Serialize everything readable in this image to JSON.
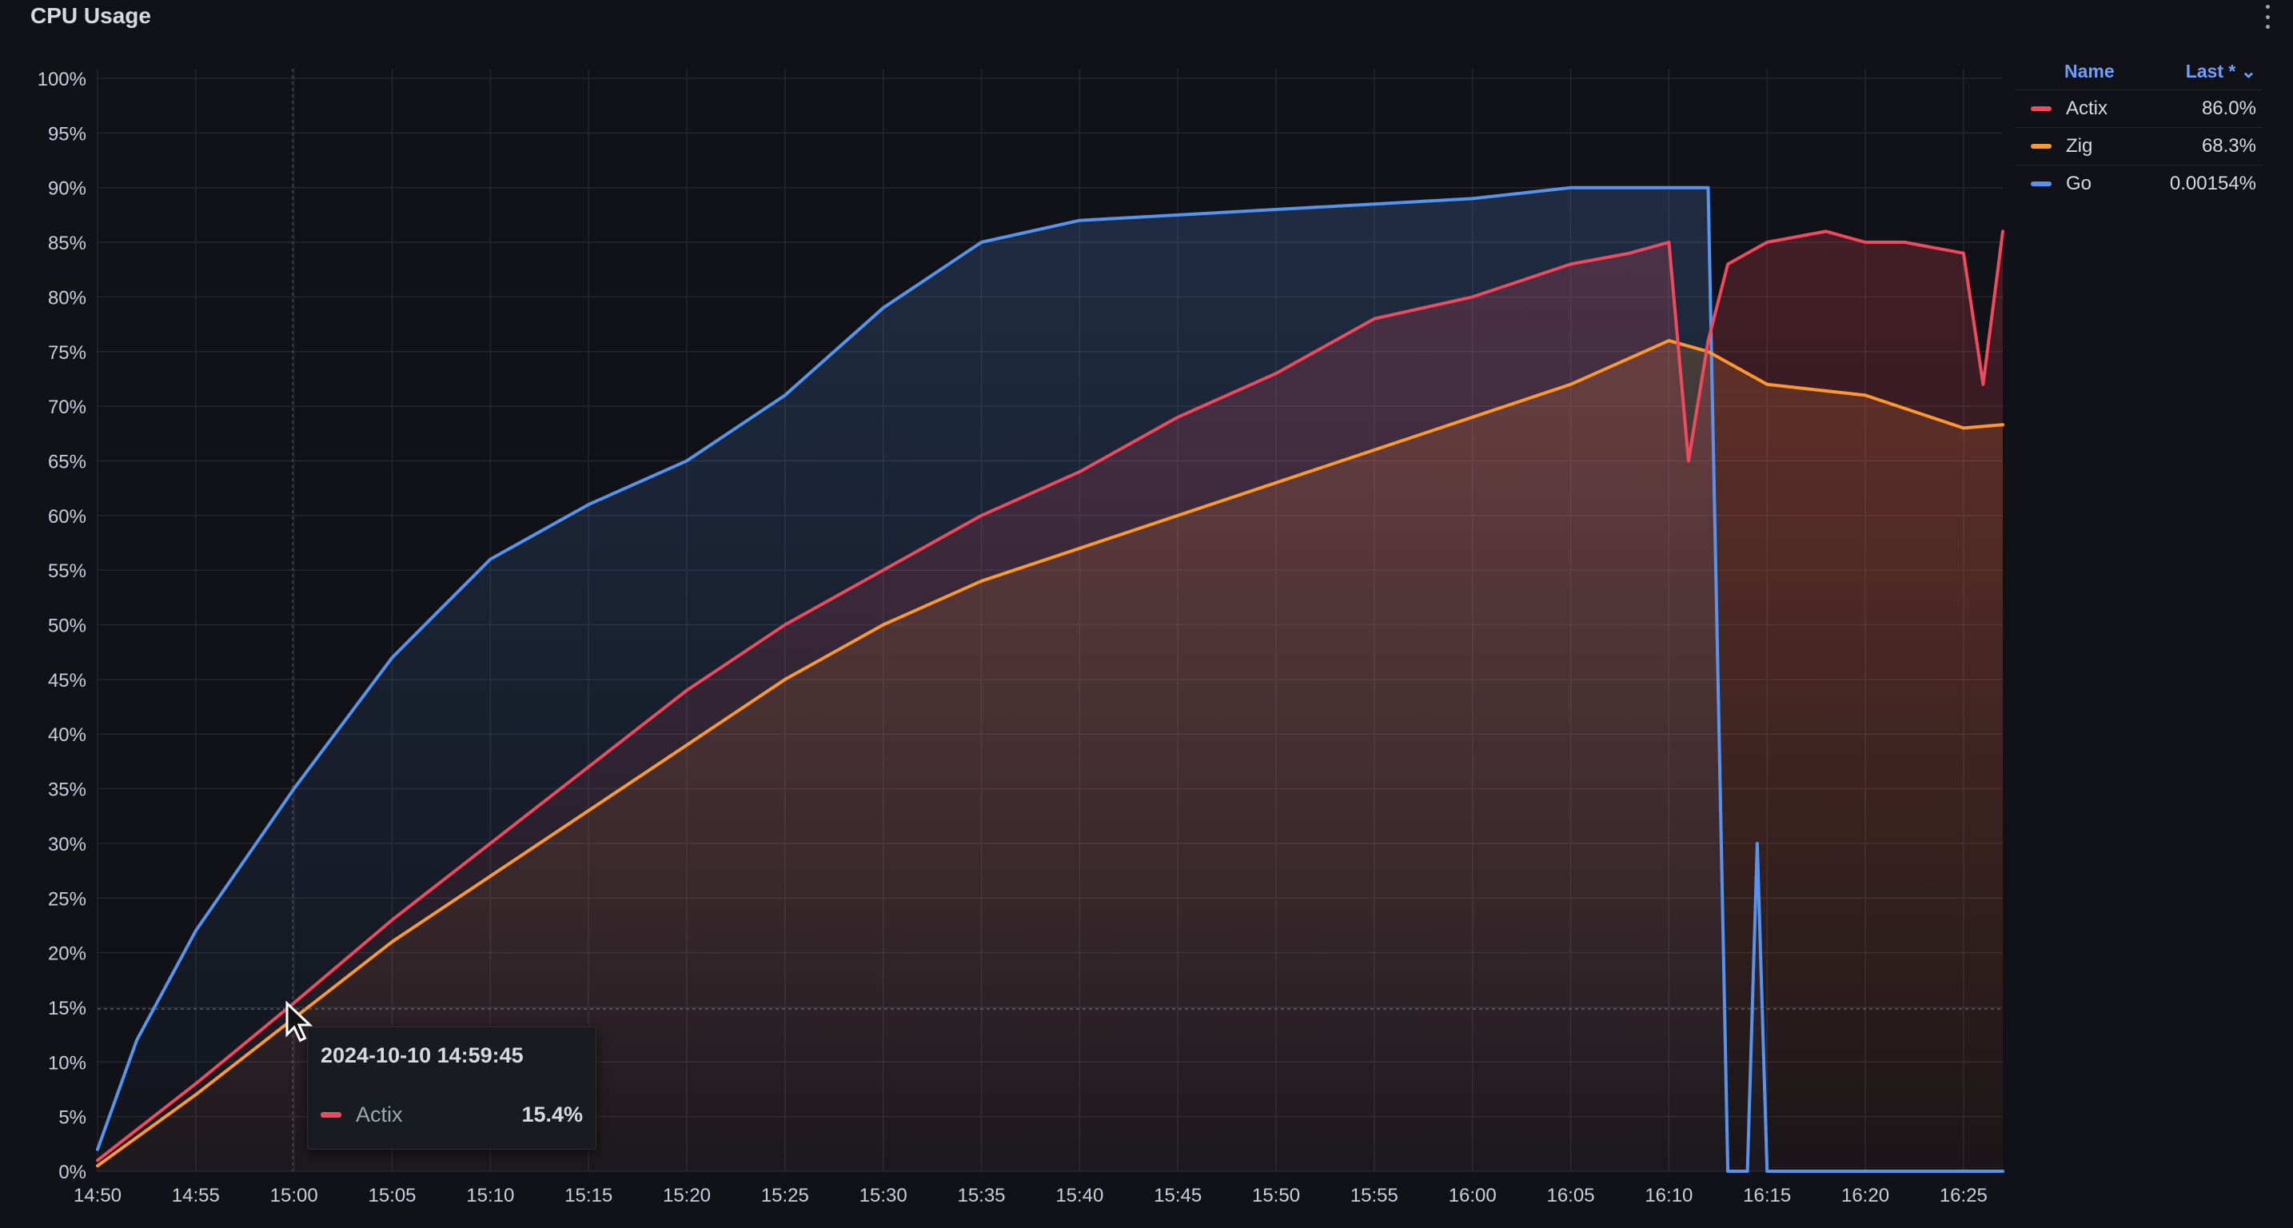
{
  "panel": {
    "title": "CPU Usage",
    "menu_icon": "kebab-menu-icon"
  },
  "legend": {
    "name_header": "Name",
    "value_header": "Last * ⌄",
    "items": [
      {
        "name": "Actix",
        "value": "86.0%",
        "color": "#f2495c"
      },
      {
        "name": "Zig",
        "value": "68.3%",
        "color": "#ff9830"
      },
      {
        "name": "Go",
        "value": "0.00154%",
        "color": "#5794f2"
      }
    ]
  },
  "tooltip": {
    "time": "2024-10-10 14:59:45",
    "series": "Actix",
    "value": "15.4%",
    "color": "#f2495c"
  },
  "chart_data": {
    "type": "line",
    "title": "CPU Usage",
    "xlabel": "",
    "ylabel": "",
    "x_ticks": [
      "14:50",
      "14:55",
      "15:00",
      "15:05",
      "15:10",
      "15:15",
      "15:20",
      "15:25",
      "15:30",
      "15:35",
      "15:40",
      "15:45",
      "15:50",
      "15:55",
      "16:00",
      "16:05",
      "16:10",
      "16:15",
      "16:20",
      "16:25"
    ],
    "y_ticks": [
      "0%",
      "5%",
      "10%",
      "15%",
      "20%",
      "25%",
      "30%",
      "35%",
      "40%",
      "45%",
      "50%",
      "55%",
      "60%",
      "65%",
      "70%",
      "75%",
      "80%",
      "85%",
      "90%",
      "95%",
      "100%"
    ],
    "xlim": [
      "14:50",
      "16:27"
    ],
    "ylim": [
      0,
      100
    ],
    "grid": true,
    "legend_placement": "top-right",
    "series": [
      {
        "name": "Actix",
        "color": "#f2495c",
        "x": [
          "14:50",
          "14:55",
          "15:00",
          "15:05",
          "15:10",
          "15:15",
          "15:20",
          "15:25",
          "15:30",
          "15:35",
          "15:40",
          "15:45",
          "15:50",
          "15:55",
          "16:00",
          "16:05",
          "16:08",
          "16:10",
          "16:11",
          "16:12",
          "16:13",
          "16:15",
          "16:18",
          "16:20",
          "16:22",
          "16:25",
          "16:26",
          "16:27"
        ],
        "y": [
          1,
          8,
          15.4,
          23,
          30,
          37,
          44,
          50,
          55,
          60,
          64,
          69,
          73,
          78,
          80,
          83,
          84,
          85,
          65,
          76,
          83,
          85,
          86,
          85,
          85,
          84,
          72,
          86
        ]
      },
      {
        "name": "Zig",
        "color": "#ff9830",
        "x": [
          "14:50",
          "14:55",
          "15:00",
          "15:05",
          "15:10",
          "15:15",
          "15:20",
          "15:25",
          "15:30",
          "15:35",
          "15:40",
          "15:45",
          "15:50",
          "15:55",
          "16:00",
          "16:05",
          "16:10",
          "16:12",
          "16:15",
          "16:20",
          "16:25",
          "16:27"
        ],
        "y": [
          0.5,
          7,
          14,
          21,
          27,
          33,
          39,
          45,
          50,
          54,
          57,
          60,
          63,
          66,
          69,
          72,
          76,
          75,
          72,
          71,
          68,
          68.3
        ]
      },
      {
        "name": "Go",
        "color": "#5794f2",
        "x": [
          "14:50",
          "14:52",
          "14:55",
          "15:00",
          "15:05",
          "15:10",
          "15:15",
          "15:20",
          "15:25",
          "15:30",
          "15:35",
          "15:40",
          "15:45",
          "15:50",
          "15:55",
          "16:00",
          "16:05",
          "16:10",
          "16:12",
          "16:13",
          "16:14",
          "16:14.5",
          "16:15",
          "16:20",
          "16:25",
          "16:27"
        ],
        "y": [
          2,
          12,
          22,
          35,
          47,
          56,
          61,
          65,
          71,
          79,
          85,
          87,
          87.5,
          88,
          88.5,
          89,
          90,
          90,
          90,
          0,
          0,
          30,
          0,
          0,
          0,
          0.00154
        ]
      }
    ]
  }
}
